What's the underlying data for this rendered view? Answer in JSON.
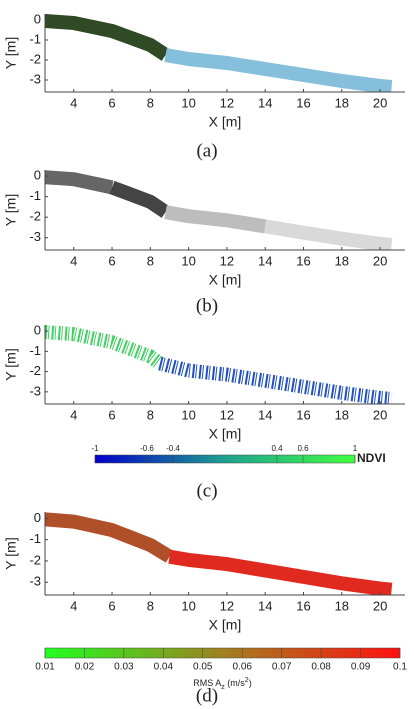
{
  "chart_data": [
    {
      "type": "track",
      "xlabel": "X [m]",
      "ylabel": "Y [m]",
      "caption": "(a)",
      "xlim": [
        2.5,
        21.3
      ],
      "ylim": [
        -3.6,
        0.3
      ],
      "xticks": [
        4,
        6,
        8,
        10,
        12,
        14,
        16,
        18,
        20
      ],
      "yticks": [
        0,
        -1,
        -2,
        -3
      ],
      "series": [
        {
          "color": "#2f4a25",
          "x": [
            2.5,
            4,
            6,
            8,
            8.8
          ],
          "y": [
            -0.05,
            -0.15,
            -0.55,
            -1.25,
            -1.75
          ]
        },
        {
          "color": "#86bfdc",
          "x": [
            8.8,
            10,
            12,
            14,
            16,
            18,
            20,
            20.6
          ],
          "y": [
            -1.75,
            -1.95,
            -2.15,
            -2.45,
            -2.75,
            -3.05,
            -3.3,
            -3.35
          ]
        }
      ]
    },
    {
      "type": "track",
      "xlabel": "X [m]",
      "ylabel": "Y [m]",
      "caption": "(b)",
      "xlim": [
        2.5,
        21.3
      ],
      "ylim": [
        -3.6,
        0.3
      ],
      "xticks": [
        4,
        6,
        8,
        10,
        12,
        14,
        16,
        18,
        20
      ],
      "yticks": [
        0,
        -1,
        -2,
        -3
      ],
      "series": [
        {
          "color": "#666666",
          "x": [
            2.5,
            4,
            6
          ],
          "y": [
            -0.05,
            -0.15,
            -0.55
          ]
        },
        {
          "color": "#444444",
          "x": [
            6,
            8,
            8.8
          ],
          "y": [
            -0.55,
            -1.25,
            -1.75
          ]
        },
        {
          "color": "#bdbdbd",
          "x": [
            8.8,
            10,
            12,
            14
          ],
          "y": [
            -1.75,
            -1.95,
            -2.15,
            -2.45
          ]
        },
        {
          "color": "#d9d9d9",
          "x": [
            14,
            16,
            18,
            20,
            20.6
          ],
          "y": [
            -2.45,
            -2.75,
            -3.05,
            -3.3,
            -3.35
          ]
        }
      ]
    },
    {
      "type": "track",
      "xlabel": "X [m]",
      "ylabel": "Y [m]",
      "caption": "(c)",
      "striped": true,
      "xlim": [
        2.5,
        21.3
      ],
      "ylim": [
        -3.6,
        0.3
      ],
      "xticks": [
        4,
        6,
        8,
        10,
        12,
        14,
        16,
        18,
        20
      ],
      "yticks": [
        0,
        -1,
        -2,
        -3
      ],
      "series": [
        {
          "color": "#3fd060",
          "x": [
            2.5,
            4,
            6,
            8,
            8.5
          ],
          "y": [
            -0.05,
            -0.15,
            -0.55,
            -1.25,
            -1.6
          ]
        },
        {
          "color": "#1f4fc0",
          "x": [
            8.5,
            10,
            12,
            14,
            16,
            18,
            20,
            20.6
          ],
          "y": [
            -1.6,
            -1.95,
            -2.15,
            -2.45,
            -2.75,
            -3.05,
            -3.3,
            -3.35
          ]
        }
      ],
      "colorbar": {
        "lim": [
          -1,
          1
        ],
        "ticks": [
          -1,
          -0.6,
          -0.4,
          0.4,
          0.6,
          1
        ],
        "colors": [
          "#0000c8",
          "#20a090",
          "#40ff40"
        ],
        "label": "NDVI"
      }
    },
    {
      "type": "track",
      "xlabel": "X [m]",
      "ylabel": "Y [m]",
      "caption": "(d)",
      "xlim": [
        2.5,
        21.3
      ],
      "ylim": [
        -3.6,
        0.3
      ],
      "xticks": [
        4,
        6,
        8,
        10,
        12,
        14,
        16,
        18,
        20
      ],
      "yticks": [
        0,
        -1,
        -2,
        -3
      ],
      "series": [
        {
          "color": "#b0502a",
          "x": [
            2.5,
            4,
            6,
            8,
            9
          ],
          "y": [
            -0.05,
            -0.15,
            -0.55,
            -1.25,
            -1.8
          ]
        },
        {
          "color": "#e02a20",
          "x": [
            9,
            10,
            12,
            14,
            16,
            18,
            20,
            20.6
          ],
          "y": [
            -1.8,
            -1.95,
            -2.15,
            -2.45,
            -2.75,
            -3.05,
            -3.3,
            -3.35
          ]
        }
      ],
      "colorbar": {
        "lim": [
          0.01,
          0.1
        ],
        "ticks": [
          0.01,
          0.02,
          0.03,
          0.04,
          0.05,
          0.06,
          0.07,
          0.08,
          0.09,
          0.1
        ],
        "colors": [
          "#20ff20",
          "#a08020",
          "#ff1010"
        ],
        "label": [
          "RMS A",
          "z",
          " (m/s",
          "2",
          ")"
        ]
      }
    }
  ]
}
